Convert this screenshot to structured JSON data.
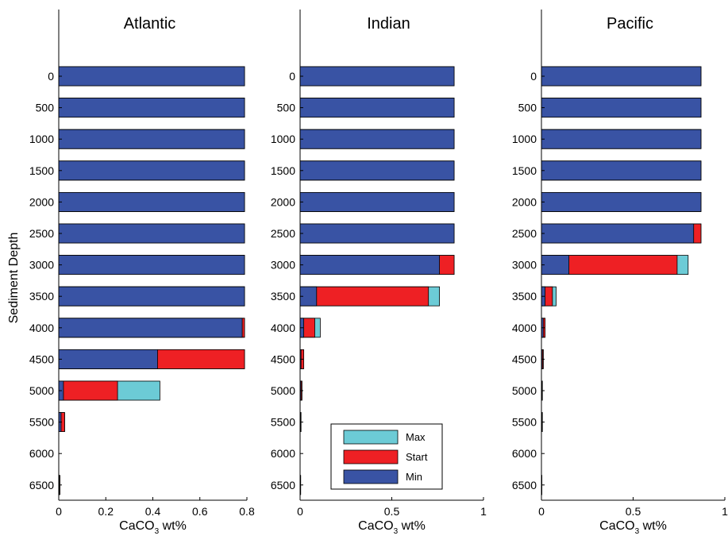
{
  "figure": {
    "ylabel": "Sediment Depth"
  },
  "legend": {
    "entries": [
      {
        "label": "Max",
        "color": "#6ccbd6"
      },
      {
        "label": "Start",
        "color": "#ee2024"
      },
      {
        "label": "Min",
        "color": "#3953a4"
      }
    ]
  },
  "chart_data": [
    {
      "type": "bar",
      "orientation": "horizontal",
      "stacked": false,
      "overlaid": true,
      "title": "Atlantic",
      "xlabel_main": "CaCO",
      "xlabel_sub": "3",
      "xlabel_rest": " wt%",
      "xlim": [
        0,
        0.8
      ],
      "xticks": [
        0,
        0.2,
        0.4,
        0.6,
        0.8
      ],
      "xtick_labels": [
        "0",
        "0.2",
        "0.4",
        "0.6",
        "0.8"
      ],
      "categories": [
        "0",
        "500",
        "1000",
        "1500",
        "2000",
        "2500",
        "3000",
        "3500",
        "4000",
        "4500",
        "5000",
        "5500",
        "6000",
        "6500"
      ],
      "series": [
        {
          "name": "Max",
          "values": [
            0.79,
            0.79,
            0.79,
            0.79,
            0.79,
            0.79,
            0.79,
            0.79,
            0.79,
            0.79,
            0.43,
            0.025,
            0.0,
            0.005
          ]
        },
        {
          "name": "Start",
          "values": [
            0.79,
            0.79,
            0.79,
            0.79,
            0.79,
            0.79,
            0.79,
            0.79,
            0.79,
            0.79,
            0.25,
            0.025,
            0.0,
            0.005
          ]
        },
        {
          "name": "Min",
          "values": [
            0.79,
            0.79,
            0.79,
            0.79,
            0.79,
            0.79,
            0.79,
            0.79,
            0.78,
            0.42,
            0.02,
            0.01,
            0.0,
            0.003
          ]
        }
      ]
    },
    {
      "type": "bar",
      "orientation": "horizontal",
      "stacked": false,
      "overlaid": true,
      "title": "Indian",
      "xlabel_main": "CaCO",
      "xlabel_sub": "3",
      "xlabel_rest": " wt%",
      "xlim": [
        0,
        1
      ],
      "xticks": [
        0,
        0.5,
        1
      ],
      "xtick_labels": [
        "0",
        "0.5",
        "1"
      ],
      "categories": [
        "0",
        "500",
        "1000",
        "1500",
        "2000",
        "2500",
        "3000",
        "3500",
        "4000",
        "4500",
        "5000",
        "5500",
        "6000",
        "6500"
      ],
      "series": [
        {
          "name": "Max",
          "values": [
            0.84,
            0.84,
            0.84,
            0.84,
            0.84,
            0.84,
            0.84,
            0.76,
            0.11,
            0.02,
            0.01,
            0.005,
            0.0,
            0.003
          ]
        },
        {
          "name": "Start",
          "values": [
            0.84,
            0.84,
            0.84,
            0.84,
            0.84,
            0.84,
            0.84,
            0.7,
            0.08,
            0.02,
            0.01,
            0.005,
            0.0,
            0.003
          ]
        },
        {
          "name": "Min",
          "values": [
            0.84,
            0.84,
            0.84,
            0.84,
            0.84,
            0.84,
            0.76,
            0.09,
            0.02,
            0.005,
            0.005,
            0.003,
            0.0,
            0.002
          ]
        }
      ]
    },
    {
      "type": "bar",
      "orientation": "horizontal",
      "stacked": false,
      "overlaid": true,
      "title": "Pacific",
      "xlabel_main": "CaCO",
      "xlabel_sub": "3",
      "xlabel_rest": " wt%",
      "xlim": [
        0,
        1
      ],
      "xticks": [
        0,
        0.5,
        1
      ],
      "xtick_labels": [
        "0",
        "0.5",
        "1"
      ],
      "categories": [
        "0",
        "500",
        "1000",
        "1500",
        "2000",
        "2500",
        "3000",
        "3500",
        "4000",
        "4500",
        "5000",
        "5500",
        "6000",
        "6500"
      ],
      "series": [
        {
          "name": "Max",
          "values": [
            0.87,
            0.87,
            0.87,
            0.87,
            0.87,
            0.87,
            0.8,
            0.08,
            0.02,
            0.01,
            0.005,
            0.005,
            0.0,
            0.002
          ]
        },
        {
          "name": "Start",
          "values": [
            0.87,
            0.87,
            0.87,
            0.87,
            0.87,
            0.87,
            0.74,
            0.06,
            0.02,
            0.01,
            0.005,
            0.005,
            0.0,
            0.002
          ]
        },
        {
          "name": "Min",
          "values": [
            0.87,
            0.87,
            0.87,
            0.87,
            0.87,
            0.83,
            0.15,
            0.02,
            0.01,
            0.005,
            0.003,
            0.003,
            0.0,
            0.001
          ]
        }
      ]
    }
  ]
}
